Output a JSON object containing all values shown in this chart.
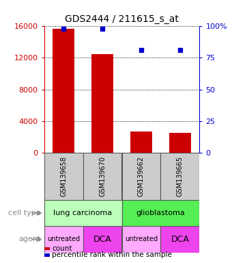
{
  "title": "GDS2444 / 211615_s_at",
  "samples": [
    "GSM139658",
    "GSM139670",
    "GSM139662",
    "GSM139665"
  ],
  "bar_values": [
    15700,
    12500,
    2700,
    2500
  ],
  "percentile_values": [
    98,
    98,
    81,
    81
  ],
  "bar_color": "#cc0000",
  "dot_color": "#0000cc",
  "ylim_left": [
    0,
    16000
  ],
  "ylim_right": [
    0,
    100
  ],
  "yticks_left": [
    0,
    4000,
    8000,
    12000,
    16000
  ],
  "yticks_right": [
    0,
    25,
    50,
    75,
    100
  ],
  "ytick_labels_right": [
    "0",
    "25",
    "50",
    "75",
    "100%"
  ],
  "cell_types": [
    {
      "label": "lung carcinoma",
      "span": [
        0,
        2
      ],
      "color": "#bbffbb"
    },
    {
      "label": "glioblastoma",
      "span": [
        2,
        4
      ],
      "color": "#55ee55"
    }
  ],
  "agents": [
    {
      "label": "untreated",
      "span": [
        0,
        1
      ],
      "color": "#ffaaff"
    },
    {
      "label": "DCA",
      "span": [
        1,
        2
      ],
      "color": "#ee44ee"
    },
    {
      "label": "untreated",
      "span": [
        2,
        3
      ],
      "color": "#ffaaff"
    },
    {
      "label": "DCA",
      "span": [
        3,
        4
      ],
      "color": "#ee44ee"
    }
  ],
  "legend_items": [
    {
      "color": "#cc0000",
      "label": "count"
    },
    {
      "color": "#0000cc",
      "label": "percentile rank within the sample"
    }
  ],
  "row_label_color": "#888888",
  "sample_box_color": "#cccccc",
  "background_color": "#ffffff",
  "left_axis_color": "#cc0000",
  "right_axis_color": "#0000cc"
}
